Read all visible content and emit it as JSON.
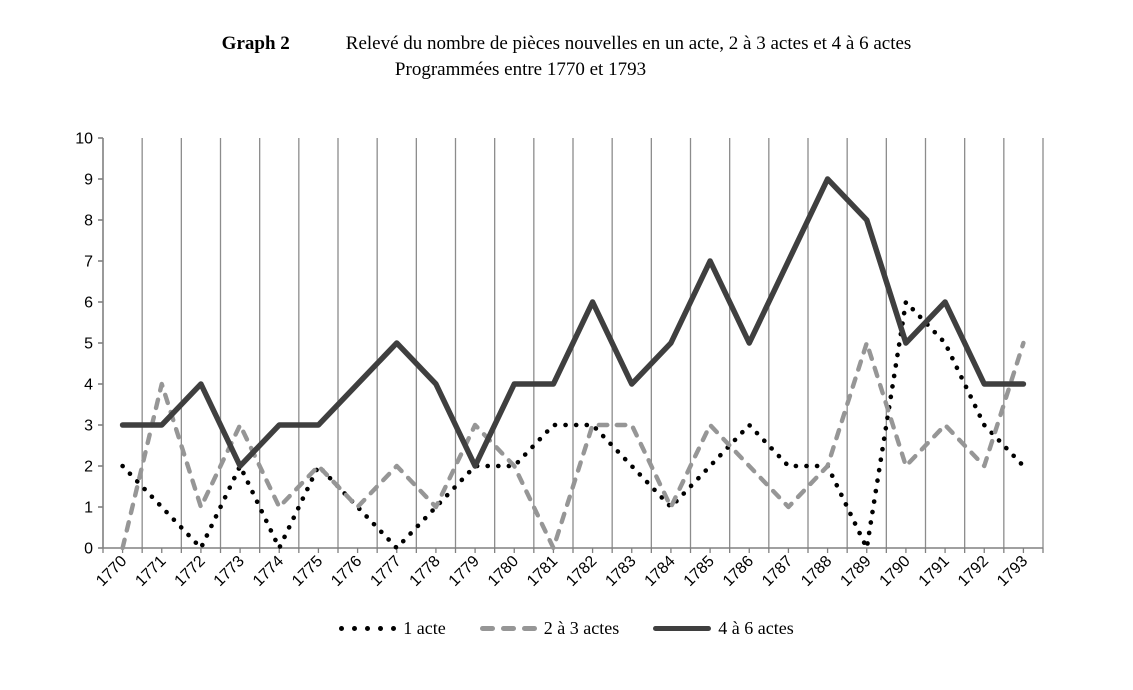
{
  "title": {
    "label": "Graph 2",
    "line1": "Relevé du nombre de pièces nouvelles en un acte, 2 à 3 actes et 4 à 6 actes",
    "line2": "Programmées entre 1770 et 1793"
  },
  "chart_data": {
    "type": "line",
    "categories": [
      "1770",
      "1771",
      "1772",
      "1773",
      "1774",
      "1775",
      "1776",
      "1777",
      "1778",
      "1779",
      "1780",
      "1781",
      "1782",
      "1783",
      "1784",
      "1785",
      "1786",
      "1787",
      "1788",
      "1789",
      "1790",
      "1791",
      "1792",
      "1793"
    ],
    "series": [
      {
        "name": "1 acte",
        "style": "dotted",
        "color": "#000000",
        "values": [
          2,
          1,
          0,
          2,
          0,
          2,
          1,
          0,
          1,
          2,
          2,
          3,
          3,
          2,
          1,
          2,
          3,
          2,
          2,
          0,
          6,
          5,
          3,
          2
        ]
      },
      {
        "name": "2 à 3 actes",
        "style": "dashed",
        "color": "#969696",
        "values": [
          0,
          4,
          1,
          3,
          1,
          2,
          1,
          2,
          1,
          3,
          2,
          0,
          3,
          3,
          1,
          3,
          2,
          1,
          2,
          5,
          2,
          3,
          2,
          5
        ]
      },
      {
        "name": "4 à 6 actes",
        "style": "solid",
        "color": "#3F3F3F",
        "values": [
          3,
          3,
          4,
          2,
          3,
          3,
          4,
          5,
          4,
          2,
          4,
          4,
          6,
          4,
          5,
          7,
          5,
          7,
          9,
          8,
          5,
          6,
          4,
          4
        ]
      }
    ],
    "ylim": [
      0,
      10
    ],
    "yticks": [
      "0",
      "1",
      "2",
      "3",
      "4",
      "5",
      "6",
      "7",
      "8",
      "9",
      "10"
    ],
    "grid": "vertical-category-boundaries",
    "legend_position": "bottom",
    "axis_color": "#808080",
    "gridline_color": "#8C8C8C",
    "label_color": "#000000"
  }
}
